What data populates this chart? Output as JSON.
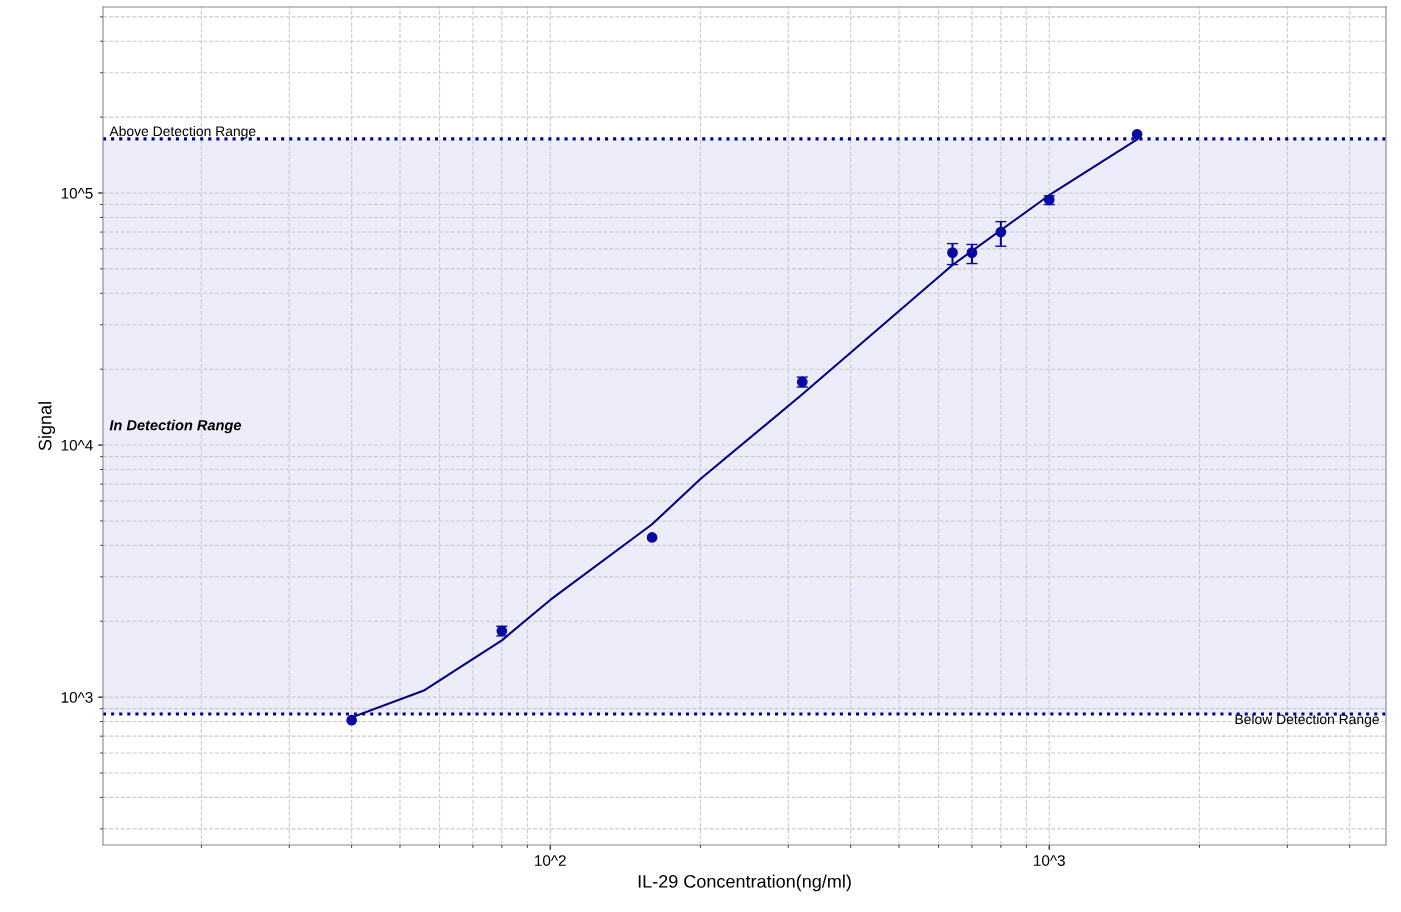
{
  "chart_data": {
    "type": "scatter",
    "xlabel": "IL-29 Concentration(ng/ml)",
    "ylabel": "Signal",
    "log": "xy",
    "grid": true,
    "marker": "circle",
    "xlim": [
      12.7,
      4730
    ],
    "ylim": [
      259,
      547000
    ],
    "xticks": [
      {
        "value": 100,
        "label": "10^2"
      },
      {
        "value": 1000,
        "label": "10^3"
      }
    ],
    "yticks": [
      {
        "value": 1000,
        "label": "10^3"
      },
      {
        "value": 10000,
        "label": "10^4"
      },
      {
        "value": 100000,
        "label": "10^5"
      }
    ],
    "series": [
      {
        "color": "#0a0aa0",
        "x": [
          40,
          80,
          160,
          320,
          640,
          700,
          800,
          1000,
          1500
        ],
        "values": [
          810,
          1830,
          4300,
          17800,
          58000,
          58000,
          70000,
          94000,
          171000
        ],
        "errors": [
          null,
          [
            1750,
            1910
          ],
          null,
          [
            17000,
            18600
          ],
          [
            52000,
            63000
          ],
          [
            52500,
            62500
          ],
          [
            61500,
            77000
          ],
          [
            90000,
            97500
          ],
          null
        ]
      },
      {
        "type": "line",
        "color": "#000080",
        "marker": "none",
        "x": [
          40,
          56,
          80,
          100,
          160,
          200,
          320,
          640,
          1000,
          1500
        ],
        "values": [
          830,
          1065,
          1680,
          2430,
          4850,
          7330,
          15900,
          51800,
          98000,
          163000
        ]
      }
    ],
    "ref_lines": [
      {
        "axis": "y",
        "value": 164000,
        "label": "Above Detection Range",
        "color": "#000080",
        "line_style": "dotted"
      },
      {
        "axis": "y",
        "value": 857,
        "label": "Below Detection Range",
        "color": "#000080",
        "line_style": "dotted"
      }
    ],
    "bands": [
      {
        "axis": "y",
        "from": 857,
        "to": 164000,
        "label": "In Detection Range",
        "color": "#ececfb"
      }
    ]
  }
}
